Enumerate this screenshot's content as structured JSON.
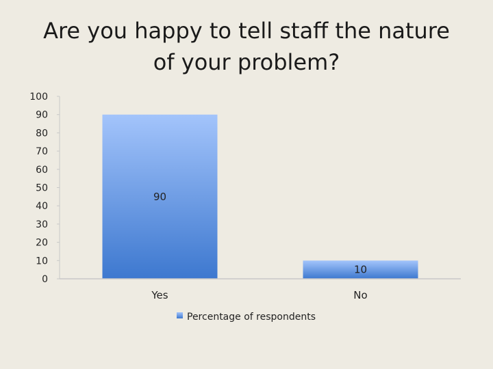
{
  "slide": {
    "title_line1": "Are you happy to tell staff the nature",
    "title_line2": "of your problem?"
  },
  "colors": {
    "background": "#eeebe2",
    "bar_top": "#a3c4fb",
    "bar_bottom": "#3d78cf",
    "axis": "#c8c8c8"
  },
  "chart_data": {
    "type": "bar",
    "title": "Are you happy to tell staff the nature of your problem?",
    "categories": [
      "Yes",
      "No"
    ],
    "series": [
      {
        "name": "Percentage of respondents",
        "values": [
          90,
          10
        ]
      }
    ],
    "data_labels": [
      "90",
      "10"
    ],
    "xlabel": "",
    "ylabel": "",
    "ylim": [
      0,
      100
    ],
    "yticks": [
      0,
      10,
      20,
      30,
      40,
      50,
      60,
      70,
      80,
      90,
      100
    ],
    "grid": false,
    "legend": "bottom"
  }
}
